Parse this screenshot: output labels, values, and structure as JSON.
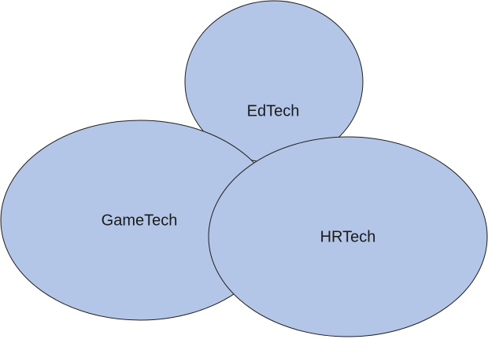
{
  "diagram": {
    "fill_color": "#b4c6e7",
    "stroke_color": "#1f1f1f",
    "shapes": [
      {
        "id": "edtech",
        "label": "EdTech"
      },
      {
        "id": "gametech",
        "label": "GameTech"
      },
      {
        "id": "hrtech",
        "label": "HRTech"
      }
    ]
  }
}
